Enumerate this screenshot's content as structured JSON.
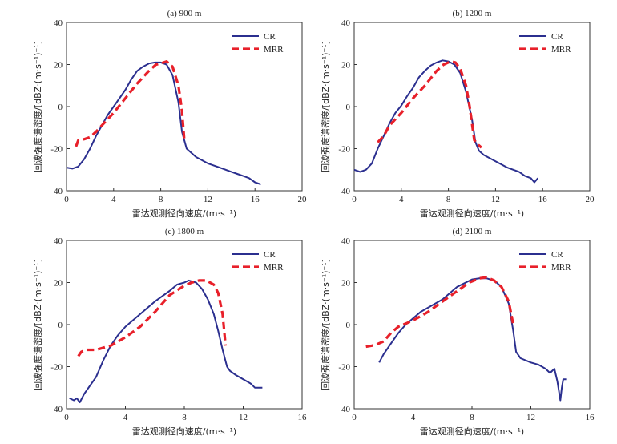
{
  "colors": {
    "CR": "#2b2f8f",
    "MRR": "#e8202a"
  },
  "chart_data": [
    {
      "type": "line",
      "title": "(a) 900 m",
      "xlabel": "雷达观测径向速度/(m·s⁻¹)",
      "ylabel": "回波强度谱密度/[dBZ·(m·s⁻¹)⁻¹]",
      "xlim": [
        0,
        20
      ],
      "ylim": [
        -40,
        40
      ],
      "xticks": [
        0,
        4,
        8,
        12,
        16,
        20
      ],
      "yticks": [
        -40,
        -20,
        0,
        20,
        40
      ],
      "legend": "top-right",
      "series": [
        {
          "name": "CR",
          "style": "solid",
          "x": [
            0,
            0.5,
            1.0,
            1.5,
            2.0,
            2.5,
            3.0,
            3.5,
            4.0,
            4.5,
            5.0,
            5.5,
            6.0,
            6.5,
            7.0,
            7.5,
            8.0,
            8.5,
            9.0,
            9.5,
            9.8,
            10.2,
            11,
            12,
            13,
            14,
            14.5,
            15,
            15.5,
            16,
            16.5
          ],
          "y": [
            -29,
            -29.5,
            -28.5,
            -25,
            -20,
            -14,
            -9,
            -4,
            0,
            4,
            8,
            13,
            17,
            19,
            20.5,
            21,
            21,
            20,
            15,
            2,
            -12,
            -20,
            -24,
            -27,
            -29,
            -31,
            -32,
            -33,
            -34,
            -36,
            -37
          ]
        },
        {
          "name": "MRR",
          "style": "dashed",
          "x": [
            0.8,
            1.0,
            1.5,
            2.0,
            2.5,
            3.0,
            4.0,
            5.0,
            6.0,
            7.0,
            7.6,
            8.0,
            8.5,
            9.0,
            9.5,
            9.8,
            10.0
          ],
          "y": [
            -19,
            -16,
            -15.5,
            -14.5,
            -12,
            -9,
            -3,
            4,
            11,
            17,
            20,
            20.5,
            21.5,
            19,
            10,
            -2,
            -16
          ]
        }
      ]
    },
    {
      "type": "line",
      "title": "(b) 1200 m",
      "xlabel": "雷达观测径向速度/(m·s⁻¹)",
      "ylabel": "回波强度谱密度/[dBZ·(m·s⁻¹)⁻¹]",
      "xlim": [
        0,
        20
      ],
      "ylim": [
        -40,
        40
      ],
      "xticks": [
        0,
        4,
        8,
        12,
        16,
        20
      ],
      "yticks": [
        -40,
        -20,
        0,
        20,
        40
      ],
      "legend": "top-right",
      "series": [
        {
          "name": "CR",
          "style": "solid",
          "x": [
            0,
            0.5,
            1.0,
            1.5,
            2.0,
            2.5,
            3.0,
            3.5,
            4.0,
            4.5,
            5.0,
            5.5,
            6.0,
            6.5,
            7.0,
            7.5,
            8.0,
            8.5,
            9.0,
            9.5,
            10.0,
            10.3,
            10.6,
            11,
            12,
            13,
            14,
            14.5,
            15,
            15.3,
            15.6
          ],
          "y": [
            -30,
            -31,
            -30,
            -27,
            -20,
            -14,
            -8,
            -3,
            0.5,
            5,
            9,
            14,
            17,
            19.5,
            21,
            22,
            21.5,
            20,
            16,
            7,
            -6,
            -17,
            -21,
            -23,
            -26,
            -29,
            -31,
            -33,
            -34,
            -36,
            -34
          ]
        },
        {
          "name": "MRR",
          "style": "dashed",
          "x": [
            2.0,
            2.5,
            3.0,
            4.0,
            5.0,
            6.0,
            7.0,
            7.6,
            8.2,
            8.6,
            9.0,
            9.5,
            9.8,
            10.0,
            10.2,
            10.5,
            10.8
          ],
          "y": [
            -17,
            -14,
            -9,
            -3,
            4,
            10,
            17,
            20,
            21.5,
            21,
            18,
            10,
            0,
            -8,
            -16,
            -18,
            -19.5
          ]
        }
      ]
    },
    {
      "type": "line",
      "title": "(c) 1800 m",
      "xlabel": "雷达观测径向速度/(m·s⁻¹)",
      "ylabel": "回波强度谱密度/[dBZ·(m·s⁻¹)⁻¹]",
      "xlim": [
        0,
        16
      ],
      "ylim": [
        -40,
        40
      ],
      "xticks": [
        0,
        4,
        8,
        12,
        16
      ],
      "yticks": [
        -40,
        -20,
        0,
        20,
        40
      ],
      "legend": "top-right",
      "series": [
        {
          "name": "CR",
          "style": "solid",
          "x": [
            0.2,
            0.5,
            0.7,
            0.9,
            1.2,
            1.6,
            2.0,
            2.5,
            3.0,
            3.5,
            4.0,
            5.0,
            6.0,
            7.0,
            7.5,
            8.0,
            8.3,
            8.8,
            9.2,
            9.6,
            10.0,
            10.3,
            10.6,
            10.9,
            11.1,
            11.5,
            12.0,
            12.5,
            12.8,
            13.0,
            13.3
          ],
          "y": [
            -35,
            -36,
            -35,
            -37,
            -33,
            -29,
            -25,
            -17,
            -10,
            -5,
            -1,
            5,
            11,
            16,
            19,
            20,
            21,
            20,
            17,
            12,
            5,
            -3,
            -12,
            -20,
            -22,
            -24,
            -26,
            -28,
            -30,
            -30,
            -30
          ]
        },
        {
          "name": "MRR",
          "style": "dashed",
          "x": [
            0.8,
            1.0,
            1.3,
            2.0,
            3.0,
            4.0,
            5.0,
            6.0,
            7.0,
            8.0,
            8.5,
            9.0,
            9.5,
            10.0,
            10.3,
            10.6,
            10.8
          ],
          "y": [
            -15,
            -13,
            -12,
            -12,
            -10,
            -6,
            -1,
            6,
            14,
            18.5,
            20,
            21,
            21,
            19,
            15,
            5,
            -10
          ]
        }
      ]
    },
    {
      "type": "line",
      "title": "(d) 2100 m",
      "xlabel": "雷达观测径向速度/(m·s⁻¹)",
      "ylabel": "回波强度谱密度/[dBZ·(m·s⁻¹)⁻¹]",
      "xlim": [
        0,
        16
      ],
      "ylim": [
        -40,
        40
      ],
      "xticks": [
        0,
        4,
        8,
        12,
        16
      ],
      "yticks": [
        -40,
        -20,
        0,
        20,
        40
      ],
      "legend": "top-right",
      "series": [
        {
          "name": "CR",
          "style": "solid",
          "x": [
            1.7,
            2.0,
            2.5,
            3.0,
            3.5,
            4.0,
            4.5,
            5.0,
            6.0,
            7.0,
            8.0,
            8.5,
            9.0,
            9.5,
            10.0,
            10.5,
            10.8,
            11.0,
            11.3,
            12.0,
            12.5,
            13.0,
            13.3,
            13.6,
            13.8,
            14.0,
            14.1,
            14.2,
            14.4
          ],
          "y": [
            -18,
            -14,
            -9,
            -4,
            0,
            3,
            6,
            8,
            12,
            18,
            21.5,
            22,
            22,
            21,
            18,
            10,
            -3,
            -13,
            -16,
            -18,
            -19,
            -21,
            -23,
            -21,
            -27,
            -36,
            -30,
            -26,
            -26
          ]
        },
        {
          "name": "MRR",
          "style": "dashed",
          "x": [
            0.8,
            1.2,
            1.5,
            2.0,
            2.5,
            3.0,
            4.0,
            5.0,
            6.0,
            7.0,
            7.8,
            8.5,
            9.0,
            9.5,
            10.0,
            10.5,
            10.8
          ],
          "y": [
            -10.5,
            -10,
            -9.5,
            -8,
            -4,
            -1,
            2,
            6,
            11,
            16,
            20,
            22,
            22.5,
            21,
            18,
            11,
            0
          ]
        }
      ]
    }
  ]
}
